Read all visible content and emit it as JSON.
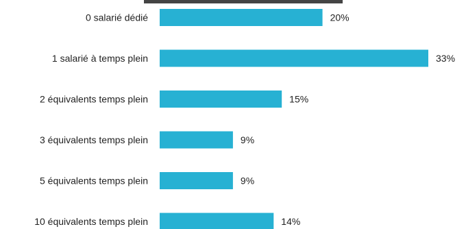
{
  "chart_data": {
    "type": "bar",
    "orientation": "horizontal",
    "categories": [
      "0 salarié dédié",
      "1 salarié à temps plein",
      "2 équivalents temps plein",
      "3 équivalents temps plein",
      "5 équivalents temps plein",
      "10 équivalents temps plein"
    ],
    "values": [
      20,
      33,
      15,
      9,
      9,
      14
    ],
    "value_labels": [
      "20%",
      "33%",
      "15%",
      "9%",
      "9%",
      "14%"
    ],
    "unit": "%",
    "xlim": [
      0,
      33
    ],
    "grid": false,
    "legend": "none",
    "colors": {
      "bar": "#27b1d3",
      "text": "#222222"
    }
  }
}
